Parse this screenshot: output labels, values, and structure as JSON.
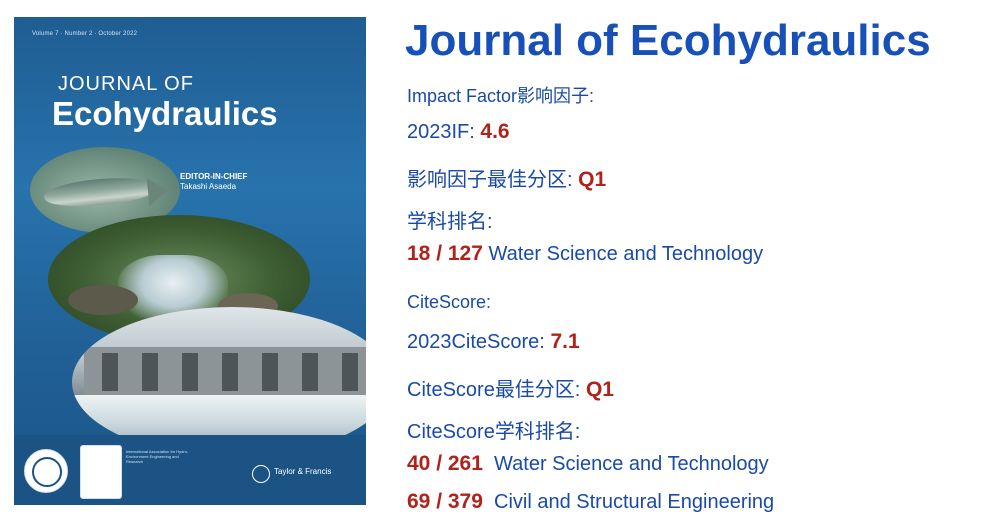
{
  "cover": {
    "issue_line": "Volume 7 · Number 2 · October 2022",
    "kicker": "JOURNAL OF",
    "title": "Ecohydraulics",
    "editor_role": "EDITOR-IN-CHIEF",
    "editor_name": "Takashi Asaeda",
    "publisher": "Taylor & Francis",
    "footer_text": "International Association for Hydro-Environment Engineering and Research"
  },
  "journal_title": "Journal of Ecohydraulics",
  "impact_factor": {
    "heading": "Impact Factor影响因子:",
    "if_label": "2023IF:",
    "if_value": "4.6",
    "quartile_label": "影响因子最佳分区:",
    "quartile_value": "Q1",
    "rank_heading": "学科排名:",
    "rank_value": "18 / 127",
    "rank_subject": "Water Science and Technology"
  },
  "citescore": {
    "heading": "CiteScore:",
    "cs_label": "2023CiteScore:",
    "cs_value": "7.1",
    "quartile_label": "CiteScore最佳分区:",
    "quartile_value": "Q1",
    "rank_heading": "CiteScore学科排名:",
    "ranks": [
      {
        "value": "40 / 261",
        "subject": "Water Science and Technology"
      },
      {
        "value": "69 / 379",
        "subject": "Civil and Structural Engineering"
      }
    ]
  },
  "colors": {
    "title": "#1650b8",
    "text": "#1a4aa8",
    "value": "#b0221a",
    "cover": "#1f5d92"
  }
}
